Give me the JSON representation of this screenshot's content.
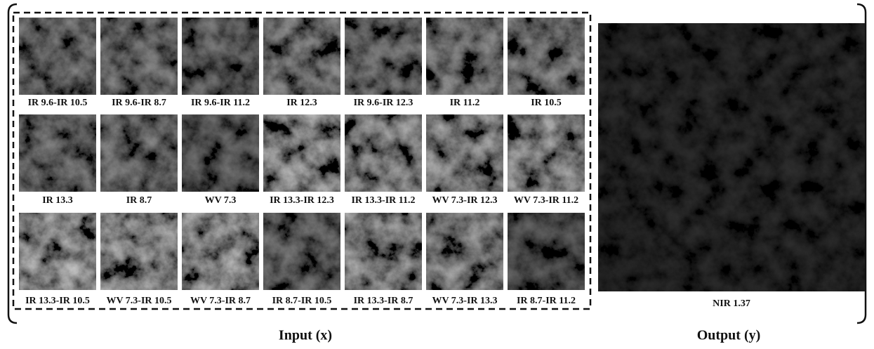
{
  "inputs": {
    "tiles": [
      "IR 9.6-IR 10.5",
      "IR 9.6-IR 8.7",
      "IR 9.6-IR 11.2",
      "IR 12.3",
      "IR 9.6-IR 12.3",
      "IR 11.2",
      "IR 10.5",
      "IR 13.3",
      "IR 8.7",
      "WV 7.3",
      "IR 13.3-IR 12.3",
      "IR 13.3-IR 11.2",
      "WV 7.3-IR 12.3",
      "WV 7.3-IR 11.2",
      "IR 13.3-IR 10.5",
      "WV 7.3-IR 10.5",
      "WV 7.3-IR 8.7",
      "IR 8.7-IR 10.5",
      "IR 13.3-IR 8.7",
      "WV 7.3-IR 13.3",
      "IR 8.7-IR 11.2"
    ],
    "caption": "Input (x)"
  },
  "output": {
    "label": "NIR 1.37",
    "caption": "Output (y)"
  }
}
